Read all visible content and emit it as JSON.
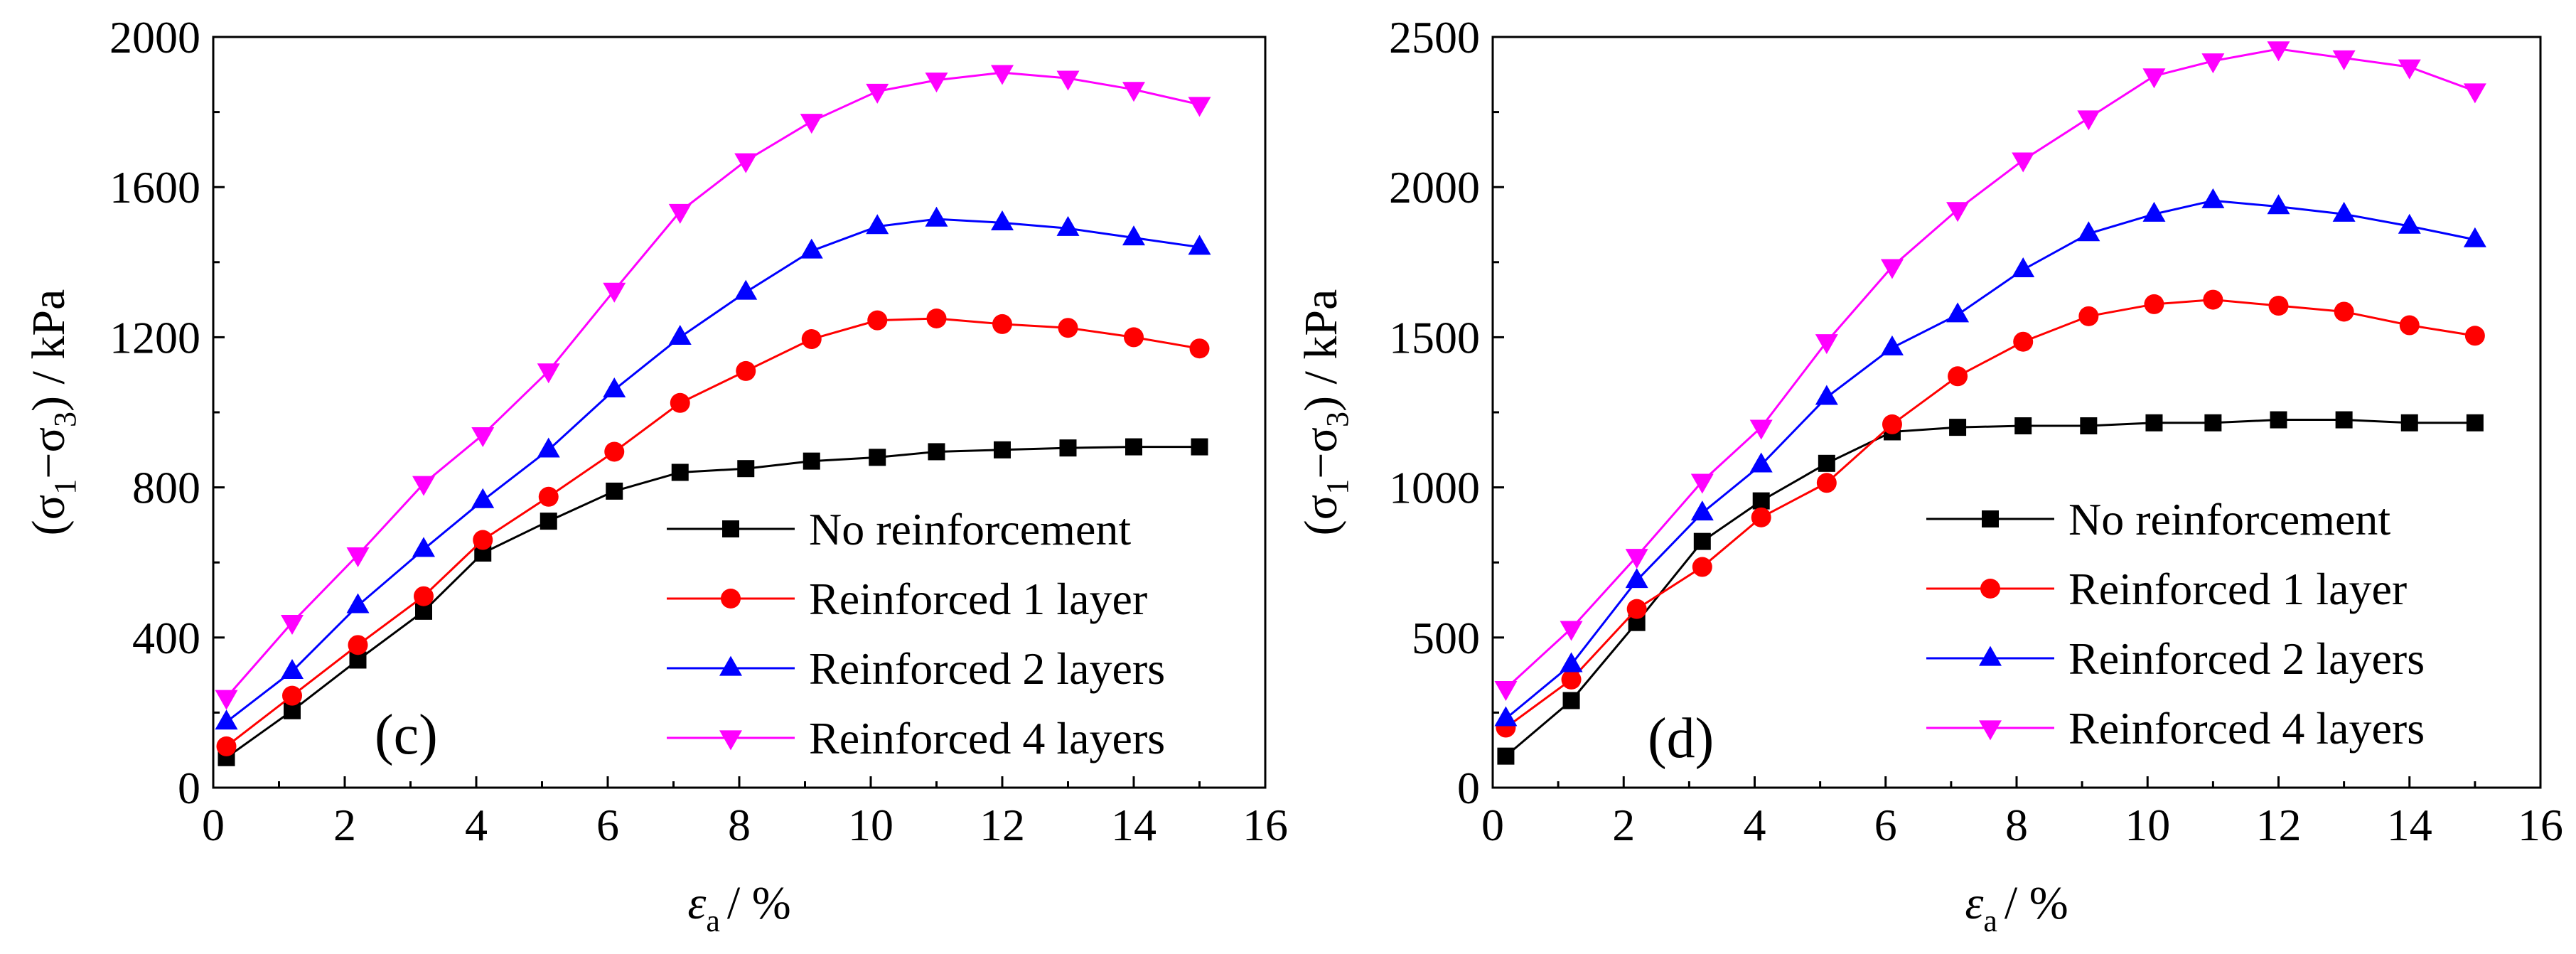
{
  "chart_data": [
    {
      "type": "line",
      "panel_label": "(c)",
      "xlabel": {
        "symbol": "ε",
        "subscript": "a",
        "unit": "/ %"
      },
      "ylabel": {
        "open": "(σ",
        "sub1": "1",
        "minus": "−σ",
        "sub3": "3",
        "close": ")",
        "unit": " / kPa"
      },
      "xlim": [
        0,
        16
      ],
      "ylim": [
        0,
        2000
      ],
      "xticks": [
        0,
        2,
        4,
        6,
        8,
        10,
        12,
        14,
        16
      ],
      "yticks": [
        0,
        400,
        800,
        1200,
        1600,
        2000
      ],
      "legend_position": "bottom-right",
      "series": [
        {
          "name": "No reinforcement",
          "color": "#000000",
          "marker": "square",
          "x": [
            0.2,
            1.2,
            2.2,
            3.2,
            4.1,
            5.1,
            6.1,
            7.1,
            8.1,
            9.1,
            10.1,
            11.0,
            12.0,
            13.0,
            14.0,
            15.0
          ],
          "y": [
            80,
            205,
            340,
            470,
            625,
            710,
            790,
            840,
            850,
            870,
            880,
            895,
            900,
            905,
            908,
            908
          ]
        },
        {
          "name": "Reinforced 1 layer",
          "color": "#ff0000",
          "marker": "circle",
          "x": [
            0.2,
            1.2,
            2.2,
            3.2,
            4.1,
            5.1,
            6.1,
            7.1,
            8.1,
            9.1,
            10.1,
            11.0,
            12.0,
            13.0,
            14.0,
            15.0
          ],
          "y": [
            110,
            245,
            380,
            510,
            660,
            775,
            895,
            1025,
            1110,
            1195,
            1245,
            1250,
            1235,
            1225,
            1200,
            1170
          ]
        },
        {
          "name": "Reinforced 2 layers",
          "color": "#0000ff",
          "marker": "triangle-up",
          "x": [
            0.2,
            1.2,
            2.2,
            3.2,
            4.1,
            5.1,
            6.1,
            7.1,
            8.1,
            9.1,
            10.1,
            11.0,
            12.0,
            13.0,
            14.0,
            15.0
          ],
          "y": [
            175,
            310,
            485,
            635,
            765,
            900,
            1060,
            1200,
            1320,
            1430,
            1495,
            1515,
            1505,
            1490,
            1465,
            1440
          ]
        },
        {
          "name": "Reinforced 4 layers",
          "color": "#ff00ff",
          "marker": "triangle-down",
          "x": [
            0.2,
            1.2,
            2.2,
            3.2,
            4.1,
            5.1,
            6.1,
            7.1,
            8.1,
            9.1,
            10.1,
            11.0,
            12.0,
            13.0,
            14.0,
            15.0
          ],
          "y": [
            240,
            440,
            620,
            810,
            940,
            1110,
            1325,
            1535,
            1670,
            1775,
            1855,
            1885,
            1905,
            1890,
            1860,
            1820
          ]
        }
      ]
    },
    {
      "type": "line",
      "panel_label": "(d)",
      "xlabel": {
        "symbol": "ε",
        "subscript": "a",
        "unit": "/ %"
      },
      "ylabel": {
        "open": "(σ",
        "sub1": "1",
        "minus": "−σ",
        "sub3": "3",
        "close": ")",
        "unit": " / kPa"
      },
      "xlim": [
        0,
        16
      ],
      "ylim": [
        0,
        2500
      ],
      "xticks": [
        0,
        2,
        4,
        6,
        8,
        10,
        12,
        14,
        16
      ],
      "yticks": [
        0,
        500,
        1000,
        1500,
        2000,
        2500
      ],
      "legend_position": "bottom-right",
      "series": [
        {
          "name": "No reinforcement",
          "color": "#000000",
          "marker": "square",
          "x": [
            0.2,
            1.2,
            2.2,
            3.2,
            4.1,
            5.1,
            6.1,
            7.1,
            8.1,
            9.1,
            10.1,
            11.0,
            12.0,
            13.0,
            14.0,
            15.0
          ],
          "y": [
            105,
            290,
            550,
            820,
            955,
            1080,
            1185,
            1200,
            1205,
            1205,
            1215,
            1215,
            1225,
            1225,
            1215,
            1215
          ]
        },
        {
          "name": "Reinforced 1 layer",
          "color": "#ff0000",
          "marker": "circle",
          "x": [
            0.2,
            1.2,
            2.2,
            3.2,
            4.1,
            5.1,
            6.1,
            7.1,
            8.1,
            9.1,
            10.1,
            11.0,
            12.0,
            13.0,
            14.0,
            15.0
          ],
          "y": [
            200,
            360,
            595,
            735,
            900,
            1015,
            1210,
            1370,
            1485,
            1570,
            1610,
            1625,
            1605,
            1585,
            1540,
            1505
          ]
        },
        {
          "name": "Reinforced 2 layers",
          "color": "#0000ff",
          "marker": "triangle-up",
          "x": [
            0.2,
            1.2,
            2.2,
            3.2,
            4.1,
            5.1,
            6.1,
            7.1,
            8.1,
            9.1,
            10.1,
            11.0,
            12.0,
            13.0,
            14.0,
            15.0
          ],
          "y": [
            230,
            410,
            690,
            915,
            1075,
            1300,
            1465,
            1575,
            1725,
            1845,
            1910,
            1955,
            1935,
            1910,
            1870,
            1825
          ]
        },
        {
          "name": "Reinforced 4 layers",
          "color": "#ff00ff",
          "marker": "triangle-down",
          "x": [
            0.2,
            1.2,
            2.2,
            3.2,
            4.1,
            5.1,
            6.1,
            7.1,
            8.1,
            9.1,
            10.1,
            11.0,
            12.0,
            13.0,
            14.0,
            15.0
          ],
          "y": [
            330,
            530,
            770,
            1020,
            1200,
            1485,
            1735,
            1925,
            2090,
            2230,
            2370,
            2420,
            2460,
            2430,
            2400,
            2320
          ]
        }
      ]
    }
  ]
}
